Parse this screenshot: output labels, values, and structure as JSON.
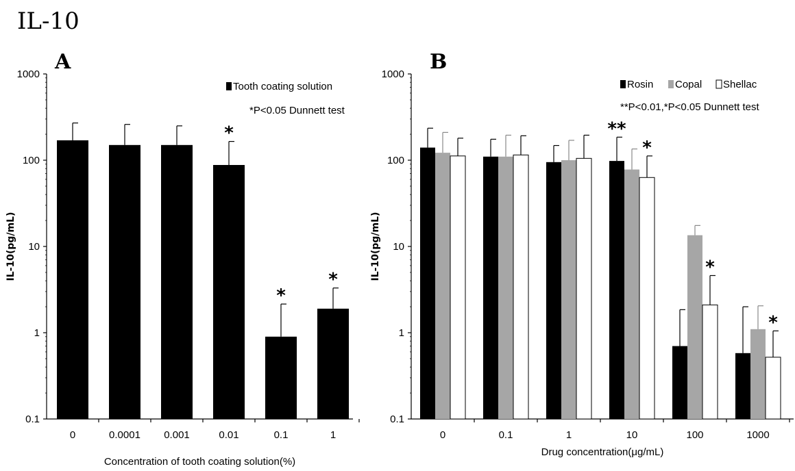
{
  "figure_title": "IL-10",
  "chart_data": [
    {
      "type": "bar",
      "panel": "A",
      "ylabel": "IL-10(pg/mL)",
      "xlabel": "Concentration of tooth coating solution(%)",
      "yscale": "log",
      "ylim": [
        0.1,
        1000
      ],
      "yticks": [
        "0.1",
        "1",
        "10",
        "100",
        "1000"
      ],
      "categories": [
        "0",
        "0.0001",
        "0.001",
        "0.01",
        "0.1",
        "1"
      ],
      "series": [
        {
          "name": "Tooth coating solution",
          "color": "#000000",
          "values": [
            170,
            150,
            150,
            88,
            0.9,
            1.9
          ],
          "error": [
            270,
            260,
            250,
            165,
            2.15,
            3.3
          ],
          "sig": [
            "",
            "",
            "",
            "*",
            "*",
            "*"
          ]
        }
      ],
      "legend": {
        "placement": "top-right",
        "note": "*P<0.05 Dunnett test"
      }
    },
    {
      "type": "bar",
      "panel": "B",
      "ylabel": "IL-10(pg/mL)",
      "xlabel": "Drug concentration(μg/mL)",
      "yscale": "log",
      "ylim": [
        0.1,
        1000
      ],
      "yticks": [
        "0.1",
        "1",
        "10",
        "100",
        "1000"
      ],
      "categories": [
        "0",
        "0.1",
        "1",
        "10",
        "100",
        "1000"
      ],
      "series": [
        {
          "name": "Rosin",
          "color": "#000000",
          "values": [
            140,
            110,
            95,
            98,
            0.7,
            0.58
          ],
          "error": [
            235,
            175,
            148,
            185,
            1.85,
            2.0
          ],
          "sig": [
            "",
            "",
            "",
            "**",
            "",
            ""
          ]
        },
        {
          "name": "Copal",
          "color": "#a6a6a6",
          "values": [
            122,
            110,
            100,
            78,
            13.5,
            1.1
          ],
          "error": [
            210,
            195,
            170,
            135,
            17.5,
            2.05
          ],
          "sig": [
            "",
            "",
            "",
            "",
            "",
            ""
          ]
        },
        {
          "name": "Shellac",
          "color": "#ffffff",
          "values": [
            112,
            115,
            105,
            63,
            2.1,
            0.52
          ],
          "error": [
            180,
            192,
            195,
            112,
            4.6,
            1.05
          ],
          "sig": [
            "",
            "",
            "",
            "*",
            "*",
            "*"
          ]
        }
      ],
      "legend": {
        "placement": "top-right",
        "note": "**P<0.01,*P<0.05 Dunnett test"
      }
    }
  ]
}
